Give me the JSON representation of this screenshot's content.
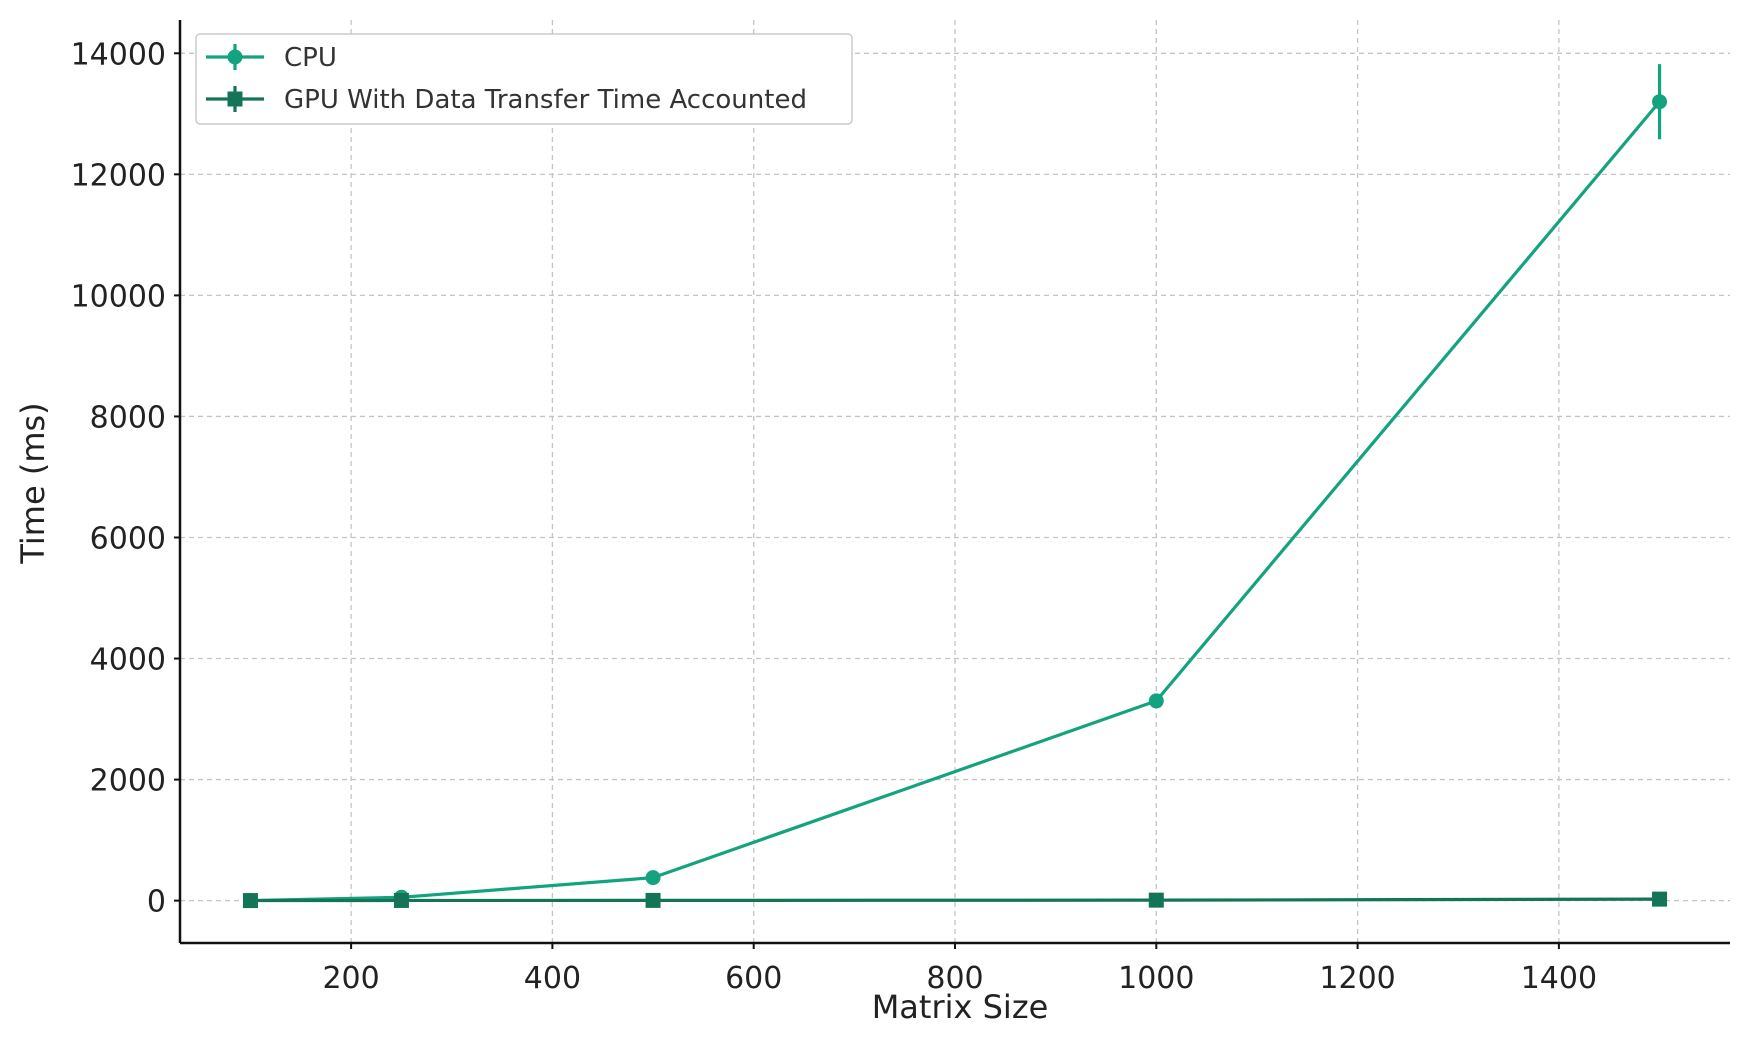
{
  "chart_data": {
    "type": "line",
    "title": "",
    "xlabel": "Matrix Size",
    "ylabel": "Time (ms)",
    "xlim": [
      30,
      1570
    ],
    "ylim": [
      -700,
      14550
    ],
    "xticks": [
      200,
      400,
      600,
      800,
      1000,
      1200,
      1400
    ],
    "yticks": [
      0,
      2000,
      4000,
      6000,
      8000,
      10000,
      12000,
      14000
    ],
    "grid": true,
    "legend_position": "top-left",
    "series": [
      {
        "name": "CPU",
        "color": "#14a37f",
        "marker": "circle",
        "x": [
          100,
          250,
          500,
          1000,
          1500
        ],
        "y": [
          2,
          55,
          380,
          3300,
          13200
        ],
        "err": [
          0,
          0,
          0,
          0,
          620
        ]
      },
      {
        "name": "GPU With Data Transfer Time Accounted",
        "color": "#137458",
        "marker": "square",
        "x": [
          100,
          250,
          500,
          1000,
          1500
        ],
        "y": [
          1,
          3,
          4,
          8,
          25
        ],
        "err": [
          0,
          0,
          0,
          0,
          0
        ]
      }
    ]
  }
}
